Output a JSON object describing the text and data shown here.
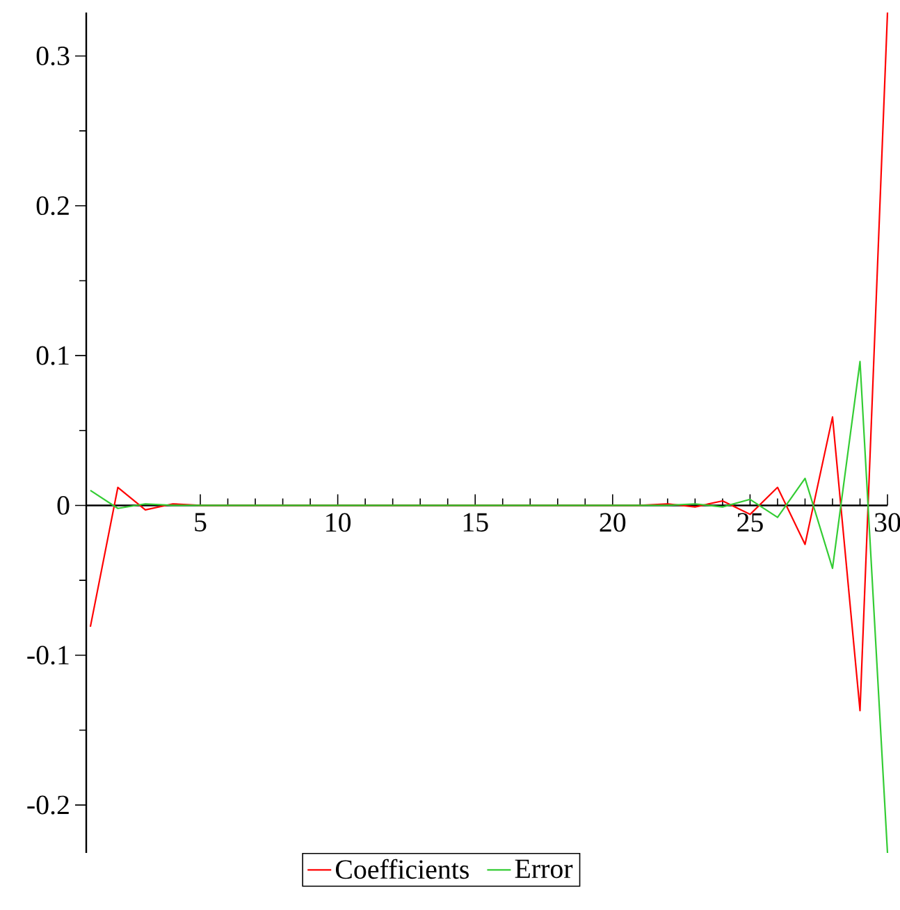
{
  "chart_data": {
    "type": "line",
    "x": [
      1,
      2,
      3,
      4,
      5,
      6,
      7,
      8,
      9,
      10,
      11,
      12,
      13,
      14,
      15,
      16,
      17,
      18,
      19,
      20,
      21,
      22,
      23,
      24,
      25,
      26,
      27,
      28,
      29,
      30
    ],
    "series": [
      {
        "name": "Coefficients",
        "color": "#ff0000",
        "values": [
          -0.081,
          0.012,
          -0.003,
          0.001,
          0,
          0,
          0,
          0,
          0,
          0,
          0,
          0,
          0,
          0,
          0,
          0,
          0,
          0,
          0,
          0,
          0,
          0.001,
          -0.001,
          0.003,
          -0.006,
          0.012,
          -0.026,
          0.059,
          -0.137,
          0.329
        ]
      },
      {
        "name": "Error",
        "color": "#33cc33",
        "values": [
          0.01,
          -0.002,
          0.001,
          0,
          0,
          0,
          0,
          0,
          0,
          0,
          0,
          0,
          0,
          0,
          0,
          0,
          0,
          0,
          0,
          0,
          0,
          0,
          0.001,
          -0.001,
          0.004,
          -0.008,
          0.018,
          -0.042,
          0.096,
          -0.232
        ]
      }
    ],
    "xlim": [
      0.85,
      30
    ],
    "ylim": [
      -0.232,
      0.329
    ],
    "xticks": [
      5,
      10,
      15,
      20,
      25,
      30
    ],
    "yticks": [
      -0.2,
      -0.1,
      0,
      0.1,
      0.2,
      0.3
    ],
    "grid": false,
    "legend": "bottom",
    "marker": "none",
    "line_style": "solid"
  }
}
